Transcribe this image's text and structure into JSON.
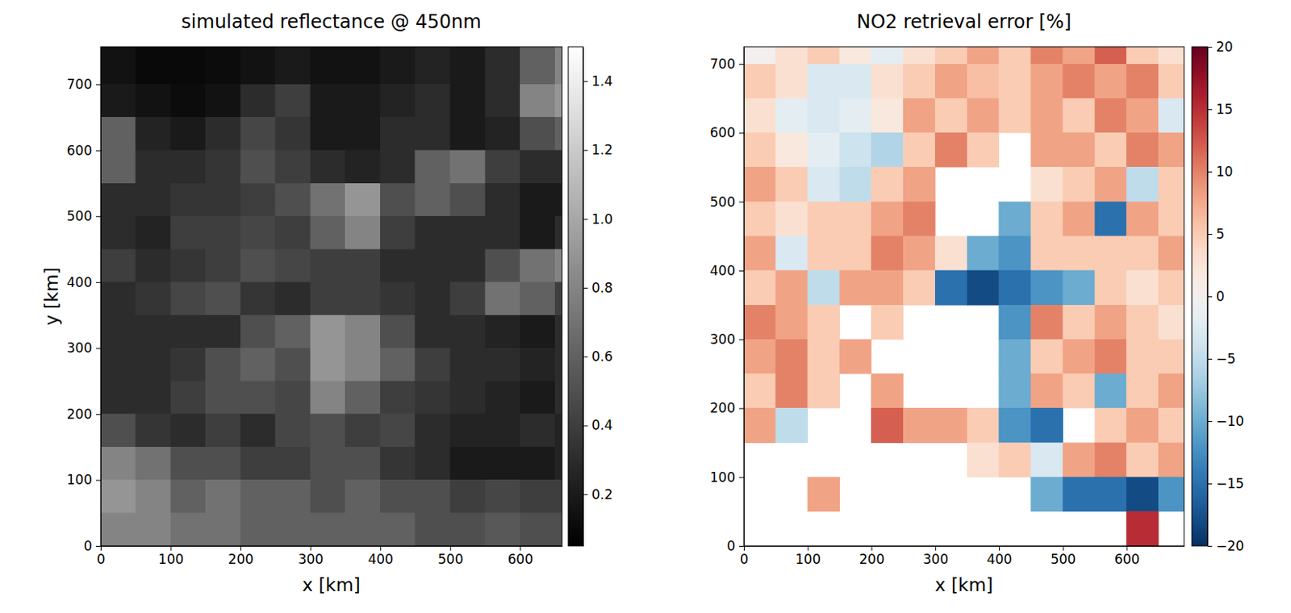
{
  "chart_data": [
    {
      "type": "heatmap",
      "title": "simulated reflectance @ 450nm",
      "x_label": "x [km]",
      "y_label": "y [km]",
      "color": "greys",
      "xlim": [
        0,
        660
      ],
      "xticks": [
        0,
        100,
        200,
        300,
        400,
        500,
        600
      ],
      "ylim": [
        0,
        757
      ],
      "yticks": [
        0,
        100,
        200,
        300,
        400,
        500,
        600,
        700
      ],
      "x_edges": [
        0,
        50,
        100,
        150,
        200,
        250,
        300,
        350,
        400,
        450,
        500,
        550,
        600,
        650,
        700
      ],
      "y_edges": [
        757,
        700,
        650,
        600,
        550,
        500,
        450,
        400,
        350,
        300,
        250,
        200,
        150,
        100,
        50,
        0
      ],
      "values": [
        [
          0.15,
          0.1,
          0.1,
          0.12,
          0.15,
          0.2,
          0.15,
          0.15,
          0.2,
          0.25,
          0.2,
          0.3,
          0.6,
          0.8
        ],
        [
          0.2,
          0.15,
          0.12,
          0.15,
          0.3,
          0.4,
          0.2,
          0.2,
          0.25,
          0.3,
          0.2,
          0.3,
          0.8,
          0.9
        ],
        [
          0.6,
          0.25,
          0.2,
          0.3,
          0.45,
          0.35,
          0.2,
          0.2,
          0.3,
          0.3,
          0.2,
          0.25,
          0.5,
          0.6
        ],
        [
          0.6,
          0.3,
          0.3,
          0.35,
          0.5,
          0.4,
          0.3,
          0.25,
          0.3,
          0.6,
          0.7,
          0.4,
          0.3,
          0.3
        ],
        [
          0.3,
          0.3,
          0.35,
          0.35,
          0.4,
          0.5,
          0.7,
          0.9,
          0.5,
          0.6,
          0.5,
          0.3,
          0.2,
          0.2
        ],
        [
          0.3,
          0.25,
          0.4,
          0.4,
          0.45,
          0.4,
          0.6,
          0.8,
          0.4,
          0.3,
          0.3,
          0.3,
          0.2,
          0.3
        ],
        [
          0.4,
          0.3,
          0.35,
          0.4,
          0.5,
          0.45,
          0.4,
          0.4,
          0.3,
          0.3,
          0.3,
          0.5,
          0.7,
          0.8
        ],
        [
          0.3,
          0.35,
          0.45,
          0.5,
          0.35,
          0.3,
          0.4,
          0.4,
          0.35,
          0.3,
          0.4,
          0.7,
          0.6,
          0.4
        ],
        [
          0.3,
          0.3,
          0.3,
          0.3,
          0.5,
          0.6,
          0.9,
          0.8,
          0.5,
          0.3,
          0.3,
          0.25,
          0.2,
          0.3
        ],
        [
          0.3,
          0.3,
          0.35,
          0.5,
          0.6,
          0.5,
          0.9,
          0.8,
          0.6,
          0.4,
          0.3,
          0.3,
          0.25,
          0.3
        ],
        [
          0.3,
          0.3,
          0.4,
          0.5,
          0.5,
          0.45,
          0.8,
          0.6,
          0.4,
          0.35,
          0.3,
          0.25,
          0.2,
          0.3
        ],
        [
          0.5,
          0.35,
          0.3,
          0.4,
          0.3,
          0.45,
          0.5,
          0.4,
          0.45,
          0.3,
          0.25,
          0.25,
          0.3,
          0.25
        ],
        [
          0.8,
          0.7,
          0.5,
          0.5,
          0.4,
          0.4,
          0.5,
          0.5,
          0.35,
          0.3,
          0.2,
          0.2,
          0.2,
          0.25
        ],
        [
          0.9,
          0.8,
          0.6,
          0.7,
          0.6,
          0.6,
          0.5,
          0.6,
          0.5,
          0.5,
          0.4,
          0.45,
          0.4,
          0.4
        ],
        [
          0.8,
          0.8,
          0.7,
          0.7,
          0.6,
          0.6,
          0.6,
          0.6,
          0.6,
          0.5,
          0.5,
          0.55,
          0.5,
          0.5
        ]
      ],
      "colorbar_range": [
        0.05,
        1.5
      ],
      "colorbar_ticks": [
        0.2,
        0.4,
        0.6,
        0.8,
        {
          "value": 1,
          "label": "1.0"
        },
        1.2,
        1.4
      ]
    },
    {
      "type": "heatmap",
      "title": "NO2 retrieval error [%]",
      "x_label": "x [km]",
      "color": "RdBu_r",
      "xlim": [
        0,
        690
      ],
      "xticks": [
        0,
        100,
        200,
        300,
        400,
        500,
        600
      ],
      "ylim": [
        0,
        725
      ],
      "yticks": [
        0,
        100,
        200,
        300,
        400,
        500,
        600,
        700
      ],
      "x_edges": [
        0,
        50,
        100,
        150,
        200,
        250,
        300,
        350,
        400,
        450,
        500,
        550,
        600,
        650,
        700
      ],
      "y_edges": [
        725,
        700,
        650,
        600,
        550,
        500,
        450,
        400,
        350,
        300,
        250,
        200,
        150,
        100,
        50,
        0
      ],
      "values": [
        [
          0,
          3,
          5,
          2,
          -2,
          3,
          5,
          8,
          5,
          10,
          8,
          12,
          5,
          3
        ],
        [
          5,
          3,
          -3,
          -3,
          3,
          5,
          8,
          6,
          5,
          8,
          10,
          8,
          10,
          5
        ],
        [
          3,
          -2,
          -3,
          -2,
          2,
          8,
          5,
          8,
          5,
          8,
          5,
          10,
          8,
          -3
        ],
        [
          5,
          2,
          -2,
          -4,
          -6,
          5,
          10,
          5,
          null,
          8,
          8,
          5,
          10,
          8
        ],
        [
          8,
          5,
          -3,
          -5,
          5,
          8,
          null,
          null,
          null,
          3,
          5,
          8,
          -5,
          5
        ],
        [
          5,
          3,
          5,
          5,
          8,
          10,
          null,
          null,
          -10,
          5,
          8,
          -15,
          8,
          5
        ],
        [
          8,
          -3,
          5,
          5,
          10,
          8,
          3,
          -10,
          -12,
          5,
          5,
          5,
          5,
          8
        ],
        [
          5,
          8,
          -5,
          8,
          8,
          5,
          -15,
          -18,
          -15,
          -12,
          -10,
          5,
          3,
          5
        ],
        [
          10,
          8,
          5,
          null,
          5,
          null,
          null,
          null,
          -12,
          10,
          5,
          8,
          5,
          3
        ],
        [
          8,
          10,
          5,
          8,
          null,
          null,
          null,
          null,
          -10,
          5,
          8,
          10,
          5,
          5
        ],
        [
          5,
          10,
          5,
          null,
          8,
          null,
          null,
          null,
          -10,
          8,
          5,
          -10,
          5,
          8
        ],
        [
          8,
          -5,
          null,
          null,
          12,
          8,
          8,
          5,
          -12,
          -15,
          null,
          5,
          8,
          5
        ],
        [
          null,
          null,
          null,
          null,
          null,
          null,
          null,
          3,
          5,
          -3,
          8,
          10,
          5,
          8
        ],
        [
          null,
          null,
          8,
          null,
          null,
          null,
          null,
          null,
          null,
          -10,
          -15,
          -15,
          -18,
          -12
        ],
        [
          null,
          null,
          null,
          null,
          null,
          null,
          null,
          null,
          null,
          null,
          null,
          null,
          15,
          null
        ]
      ],
      "colorbar_range": [
        -20,
        20
      ],
      "colorbar_ticks": [
        {
          "value": -20,
          "label": "−20"
        },
        {
          "value": -15,
          "label": "−15"
        },
        {
          "value": -10,
          "label": "−10"
        },
        {
          "value": -5,
          "label": "−5"
        },
        0,
        5,
        10,
        15,
        20
      ]
    }
  ]
}
